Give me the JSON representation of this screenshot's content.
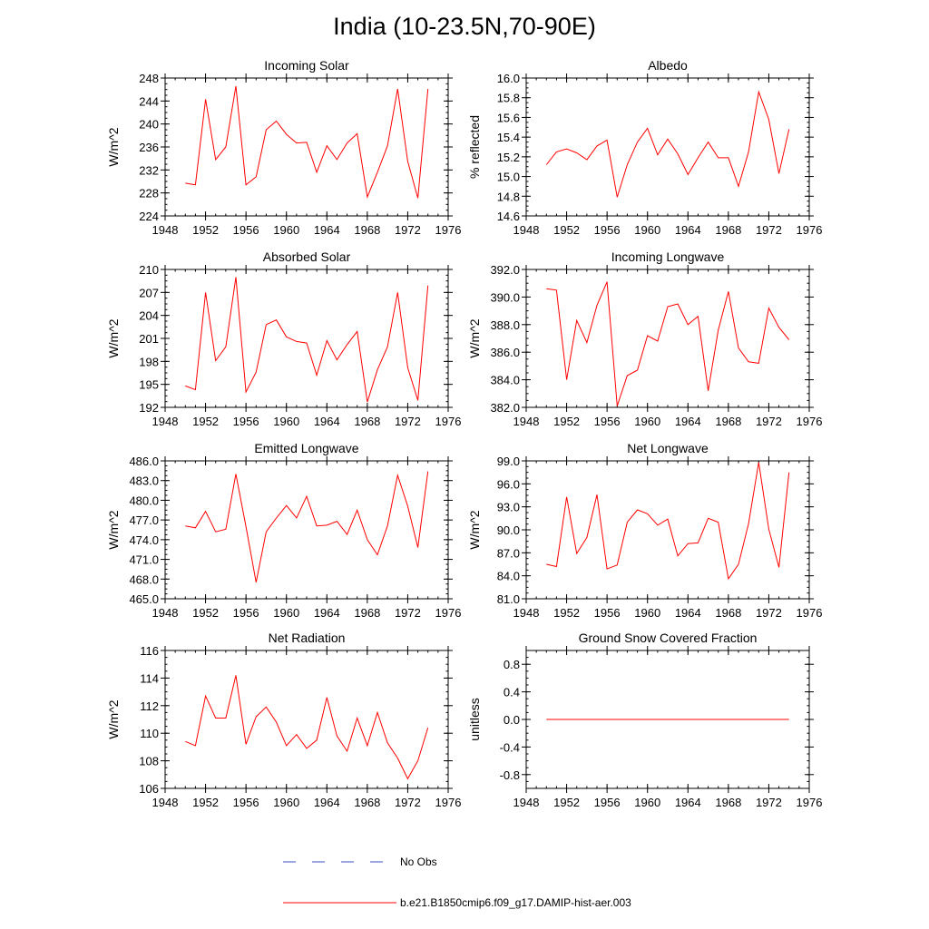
{
  "title": "India (10-23.5N,70-90E)",
  "colors": {
    "model_line": "#ff0000",
    "obs_line": "#3b4cc0",
    "axis": "#000000"
  },
  "legend": [
    {
      "label": "No Obs",
      "style": "dashed",
      "color": "#3b4cc0"
    },
    {
      "label": "b.e21.B1850cmip6.f09_g17.DAMIP-hist-aer.003",
      "style": "solid",
      "color": "#ff0000"
    }
  ],
  "chart_data": [
    {
      "type": "line",
      "title": "Incoming Solar",
      "ylabel": "W/m^2",
      "xlim": [
        1948,
        1976
      ],
      "ylim": [
        224,
        248
      ],
      "xticks": [
        "1948",
        "1952",
        "1956",
        "1960",
        "1964",
        "1968",
        "1972",
        "1976"
      ],
      "yticks": [
        "224",
        "228",
        "232",
        "236",
        "240",
        "244",
        "248"
      ],
      "x": [
        1950,
        1951,
        1952,
        1953,
        1954,
        1955,
        1956,
        1957,
        1958,
        1959,
        1960,
        1961,
        1962,
        1963,
        1964,
        1965,
        1966,
        1967,
        1968,
        1969,
        1970,
        1971,
        1972,
        1973,
        1974
      ],
      "series": [
        {
          "values": [
            229.7,
            229.4,
            244.3,
            233.8,
            236.0,
            246.6,
            229.4,
            230.8,
            239.0,
            240.5,
            238.2,
            236.7,
            236.8,
            231.6,
            236.2,
            233.8,
            236.7,
            238.3,
            227.3,
            231.6,
            236.2,
            246.1,
            233.5,
            227.1,
            246.1
          ]
        }
      ]
    },
    {
      "type": "line",
      "title": "Albedo",
      "ylabel": "% reflected",
      "xlim": [
        1948,
        1976
      ],
      "ylim": [
        14.6,
        16.0
      ],
      "xticks": [
        "1948",
        "1952",
        "1956",
        "1960",
        "1964",
        "1968",
        "1972",
        "1976"
      ],
      "yticks": [
        "14.6",
        "14.8",
        "15.0",
        "15.2",
        "15.4",
        "15.6",
        "15.8",
        "16.0"
      ],
      "x": [
        1950,
        1951,
        1952,
        1953,
        1954,
        1955,
        1956,
        1957,
        1958,
        1959,
        1960,
        1961,
        1962,
        1963,
        1964,
        1965,
        1966,
        1967,
        1968,
        1969,
        1970,
        1971,
        1972,
        1973,
        1974
      ],
      "series": [
        {
          "values": [
            15.12,
            15.25,
            15.28,
            15.24,
            15.17,
            15.31,
            15.37,
            14.79,
            15.12,
            15.35,
            15.49,
            15.22,
            15.38,
            15.23,
            15.02,
            15.19,
            15.35,
            15.19,
            15.19,
            14.9,
            15.25,
            15.86,
            15.58,
            15.03,
            15.48
          ]
        }
      ]
    },
    {
      "type": "line",
      "title": "Absorbed Solar",
      "ylabel": "W/m^2",
      "xlim": [
        1948,
        1976
      ],
      "ylim": [
        192,
        210
      ],
      "xticks": [
        "1948",
        "1952",
        "1956",
        "1960",
        "1964",
        "1968",
        "1972",
        "1976"
      ],
      "yticks": [
        "192",
        "195",
        "198",
        "201",
        "204",
        "207",
        "210"
      ],
      "x": [
        1950,
        1951,
        1952,
        1953,
        1954,
        1955,
        1956,
        1957,
        1958,
        1959,
        1960,
        1961,
        1962,
        1963,
        1964,
        1965,
        1966,
        1967,
        1968,
        1969,
        1970,
        1971,
        1972,
        1973,
        1974
      ],
      "series": [
        {
          "values": [
            194.8,
            194.3,
            207.0,
            198.1,
            199.9,
            209.0,
            194.0,
            196.6,
            202.8,
            203.4,
            201.2,
            200.6,
            200.4,
            196.2,
            200.7,
            198.2,
            200.2,
            201.9,
            192.7,
            196.9,
            199.9,
            207.0,
            197.2,
            192.9,
            207.9
          ]
        }
      ]
    },
    {
      "type": "line",
      "title": "Incoming Longwave",
      "ylabel": "W/m^2",
      "xlim": [
        1948,
        1976
      ],
      "ylim": [
        382.0,
        392.0
      ],
      "xticks": [
        "1948",
        "1952",
        "1956",
        "1960",
        "1964",
        "1968",
        "1972",
        "1976"
      ],
      "yticks": [
        "382.0",
        "384.0",
        "386.0",
        "388.0",
        "390.0",
        "392.0"
      ],
      "x": [
        1950,
        1951,
        1952,
        1953,
        1954,
        1955,
        1956,
        1957,
        1958,
        1959,
        1960,
        1961,
        1962,
        1963,
        1964,
        1965,
        1966,
        1967,
        1968,
        1969,
        1970,
        1971,
        1972,
        1973,
        1974
      ],
      "series": [
        {
          "values": [
            390.6,
            390.5,
            384.0,
            388.3,
            386.7,
            389.4,
            391.1,
            382.1,
            384.3,
            384.7,
            387.2,
            386.8,
            389.3,
            389.5,
            388.0,
            388.6,
            383.2,
            387.6,
            390.4,
            386.3,
            385.3,
            385.2,
            389.2,
            387.8,
            386.9
          ]
        }
      ]
    },
    {
      "type": "line",
      "title": "Emitted Longwave",
      "ylabel": "W/m^2",
      "xlim": [
        1948,
        1976
      ],
      "ylim": [
        465.0,
        486.0
      ],
      "xticks": [
        "1948",
        "1952",
        "1956",
        "1960",
        "1964",
        "1968",
        "1972",
        "1976"
      ],
      "yticks": [
        "465.0",
        "468.0",
        "471.0",
        "474.0",
        "477.0",
        "480.0",
        "483.0",
        "486.0"
      ],
      "x": [
        1950,
        1951,
        1952,
        1953,
        1954,
        1955,
        1956,
        1957,
        1958,
        1959,
        1960,
        1961,
        1962,
        1963,
        1964,
        1965,
        1966,
        1967,
        1968,
        1969,
        1970,
        1971,
        1972,
        1973,
        1974
      ],
      "series": [
        {
          "values": [
            476.1,
            475.8,
            478.3,
            475.2,
            475.6,
            484.0,
            476.0,
            467.5,
            475.2,
            477.3,
            479.2,
            477.3,
            480.6,
            476.1,
            476.2,
            476.8,
            474.8,
            478.5,
            474.0,
            471.7,
            476.1,
            483.8,
            479.1,
            472.8,
            484.4
          ]
        }
      ]
    },
    {
      "type": "line",
      "title": "Net Longwave",
      "ylabel": "W/m^2",
      "xlim": [
        1948,
        1976
      ],
      "ylim": [
        81.0,
        99.0
      ],
      "xticks": [
        "1948",
        "1952",
        "1956",
        "1960",
        "1964",
        "1968",
        "1972",
        "1976"
      ],
      "yticks": [
        "81.0",
        "84.0",
        "87.0",
        "90.0",
        "93.0",
        "96.0",
        "99.0"
      ],
      "x": [
        1950,
        1951,
        1952,
        1953,
        1954,
        1955,
        1956,
        1957,
        1958,
        1959,
        1960,
        1961,
        1962,
        1963,
        1964,
        1965,
        1966,
        1967,
        1968,
        1969,
        1970,
        1971,
        1972,
        1973,
        1974
      ],
      "series": [
        {
          "values": [
            85.5,
            85.2,
            94.3,
            86.9,
            89.0,
            94.6,
            84.9,
            85.4,
            91.0,
            92.6,
            92.1,
            90.6,
            91.4,
            86.6,
            88.2,
            88.3,
            91.5,
            91.0,
            83.6,
            85.5,
            90.8,
            98.8,
            90.1,
            85.1,
            97.5
          ]
        }
      ]
    },
    {
      "type": "line",
      "title": "Net Radiation",
      "ylabel": "W/m^2",
      "xlim": [
        1948,
        1976
      ],
      "ylim": [
        106,
        116
      ],
      "xticks": [
        "1948",
        "1952",
        "1956",
        "1960",
        "1964",
        "1968",
        "1972",
        "1976"
      ],
      "yticks": [
        "106",
        "108",
        "110",
        "112",
        "114",
        "116"
      ],
      "x": [
        1950,
        1951,
        1952,
        1953,
        1954,
        1955,
        1956,
        1957,
        1958,
        1959,
        1960,
        1961,
        1962,
        1963,
        1964,
        1965,
        1966,
        1967,
        1968,
        1969,
        1970,
        1971,
        1972,
        1973,
        1974
      ],
      "series": [
        {
          "values": [
            109.4,
            109.1,
            112.7,
            111.1,
            111.1,
            114.2,
            109.2,
            111.2,
            111.9,
            110.8,
            109.1,
            109.9,
            108.9,
            109.5,
            112.6,
            109.8,
            108.7,
            111.1,
            109.1,
            111.5,
            109.3,
            108.2,
            106.7,
            108.0,
            110.4
          ]
        }
      ]
    },
    {
      "type": "line",
      "title": "Ground Snow Covered Fraction",
      "ylabel": "unitless",
      "xlim": [
        1948,
        1976
      ],
      "ylim": [
        -1.0,
        1.0
      ],
      "xticks": [
        "1948",
        "1952",
        "1956",
        "1960",
        "1964",
        "1968",
        "1972",
        "1976"
      ],
      "yticks": [
        "-0.8",
        "-0.4",
        "0.0",
        "0.4",
        "0.8"
      ],
      "x": [
        1950,
        1951,
        1952,
        1953,
        1954,
        1955,
        1956,
        1957,
        1958,
        1959,
        1960,
        1961,
        1962,
        1963,
        1964,
        1965,
        1966,
        1967,
        1968,
        1969,
        1970,
        1971,
        1972,
        1973,
        1974
      ],
      "series": [
        {
          "values": [
            0,
            0,
            0,
            0,
            0,
            0,
            0,
            0,
            0,
            0,
            0,
            0,
            0,
            0,
            0,
            0,
            0,
            0,
            0,
            0,
            0,
            0,
            0,
            0,
            0
          ]
        }
      ]
    }
  ]
}
